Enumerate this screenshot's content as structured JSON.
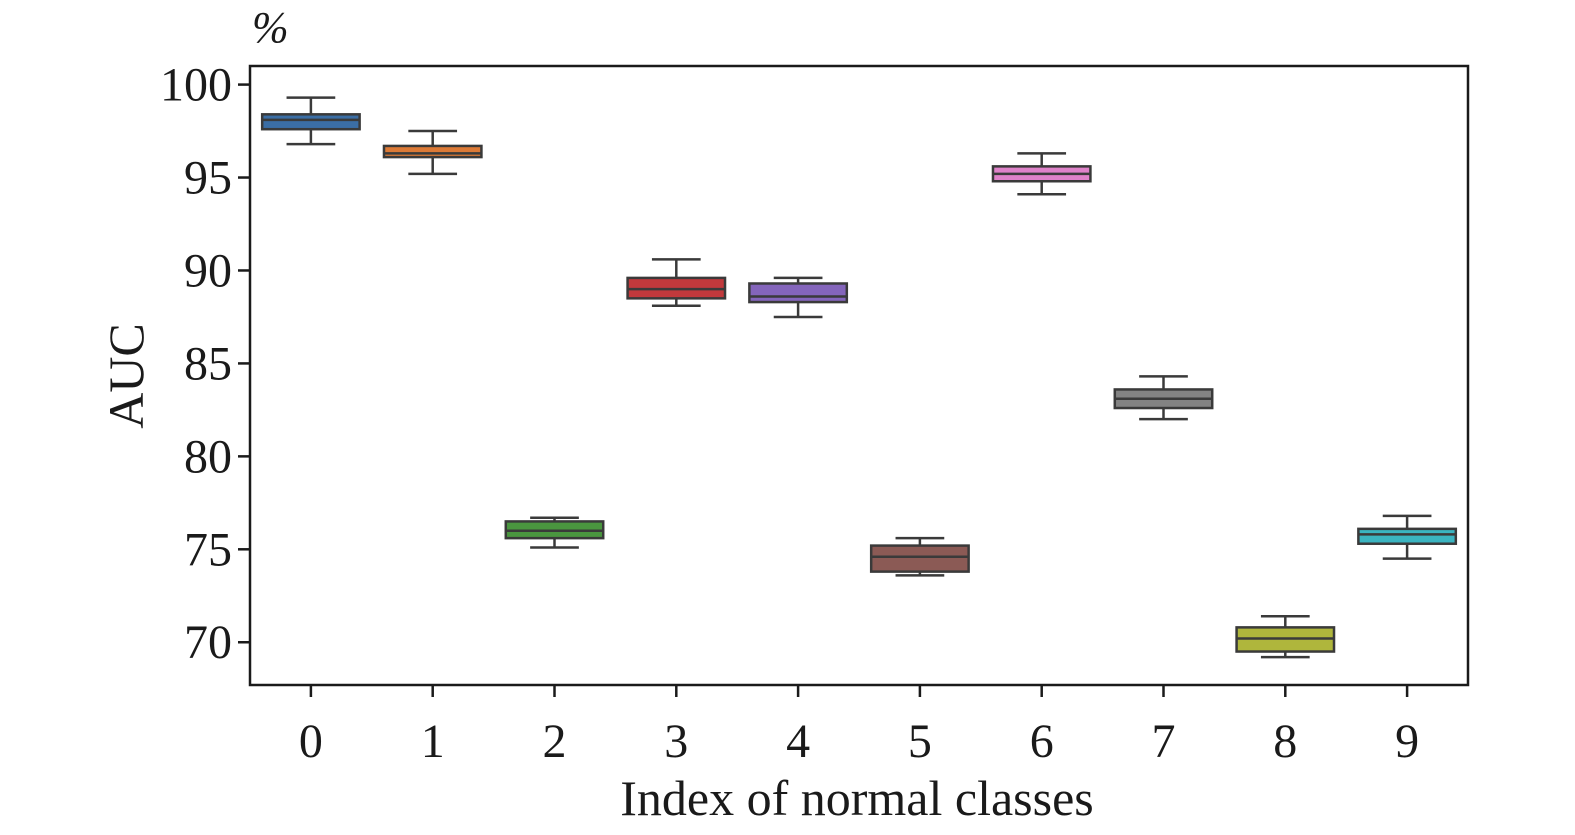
{
  "chart_data": {
    "type": "box",
    "title": "",
    "xlabel": "Index of normal classes",
    "ylabel": "AUC",
    "unit_label": "%",
    "ylim": [
      67.7,
      101
    ],
    "yticks": [
      "100",
      "95",
      "90",
      "85",
      "80",
      "75",
      "70"
    ],
    "categories": [
      "0",
      "1",
      "2",
      "3",
      "4",
      "5",
      "6",
      "7",
      "8",
      "9"
    ],
    "grid": false,
    "boxes": [
      {
        "category": "0",
        "min": 96.8,
        "q1": 97.6,
        "median": 98.1,
        "q3": 98.4,
        "max": 99.3,
        "color": "#3b6ea5"
      },
      {
        "category": "1",
        "min": 95.2,
        "q1": 96.1,
        "median": 96.3,
        "q3": 96.7,
        "max": 97.5,
        "color": "#dd7a36"
      },
      {
        "category": "2",
        "min": 75.1,
        "q1": 75.6,
        "median": 76.0,
        "q3": 76.5,
        "max": 76.7,
        "color": "#4a963f"
      },
      {
        "category": "3",
        "min": 88.1,
        "q1": 88.5,
        "median": 89.0,
        "q3": 89.6,
        "max": 90.6,
        "color": "#c1393c"
      },
      {
        "category": "4",
        "min": 87.5,
        "q1": 88.3,
        "median": 88.6,
        "q3": 89.3,
        "max": 89.6,
        "color": "#8465bb"
      },
      {
        "category": "5",
        "min": 73.6,
        "q1": 73.8,
        "median": 74.6,
        "q3": 75.2,
        "max": 75.6,
        "color": "#8b5a55"
      },
      {
        "category": "6",
        "min": 94.1,
        "q1": 94.8,
        "median": 95.2,
        "q3": 95.6,
        "max": 96.3,
        "color": "#df82c9"
      },
      {
        "category": "7",
        "min": 82.0,
        "q1": 82.6,
        "median": 83.1,
        "q3": 83.6,
        "max": 84.3,
        "color": "#838383"
      },
      {
        "category": "8",
        "min": 69.2,
        "q1": 69.5,
        "median": 70.2,
        "q3": 70.8,
        "max": 71.4,
        "color": "#afb63c"
      },
      {
        "category": "9",
        "min": 74.5,
        "q1": 75.3,
        "median": 75.8,
        "q3": 76.1,
        "max": 76.8,
        "color": "#3ab4c1"
      }
    ]
  }
}
